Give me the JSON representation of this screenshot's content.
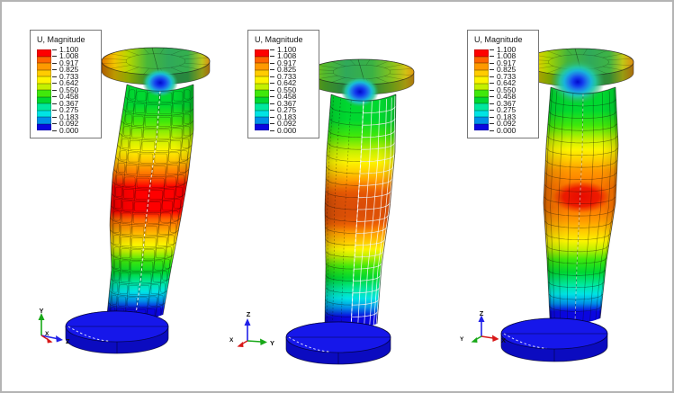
{
  "frame": {
    "background": "#ffffff",
    "border_color": "#b4b4b4"
  },
  "legend": {
    "title": "U, Magnitude",
    "ticks": [
      "1.100",
      "1.008",
      "0.917",
      "0.825",
      "0.733",
      "0.642",
      "0.550",
      "0.458",
      "0.367",
      "0.275",
      "0.183",
      "0.092",
      "0.000"
    ],
    "band_colors": [
      "#fe0000",
      "#ff6400",
      "#ff9900",
      "#ffcc00",
      "#fcf400",
      "#c3f000",
      "#40e80a",
      "#00d830",
      "#00e89e",
      "#00e4e4",
      "#0090e8",
      "#0a06e0"
    ]
  },
  "panels": [
    {
      "name": "view-1",
      "triad": {
        "up": "Y",
        "right": "Z",
        "out": "X",
        "up_color": "#18a818",
        "right_color": "#2020e8",
        "out_color": "#d81818"
      }
    },
    {
      "name": "view-2",
      "triad": {
        "up": "Z",
        "right": "Y",
        "out": "X",
        "up_color": "#2020e8",
        "right_color": "#18a818",
        "out_color": "#d81818"
      }
    },
    {
      "name": "view-3",
      "triad": {
        "up": "Z",
        "right": "X",
        "out": "Y",
        "up_color": "#2020e8",
        "right_color": "#d81818",
        "out_color": "#18a818"
      }
    }
  ]
}
